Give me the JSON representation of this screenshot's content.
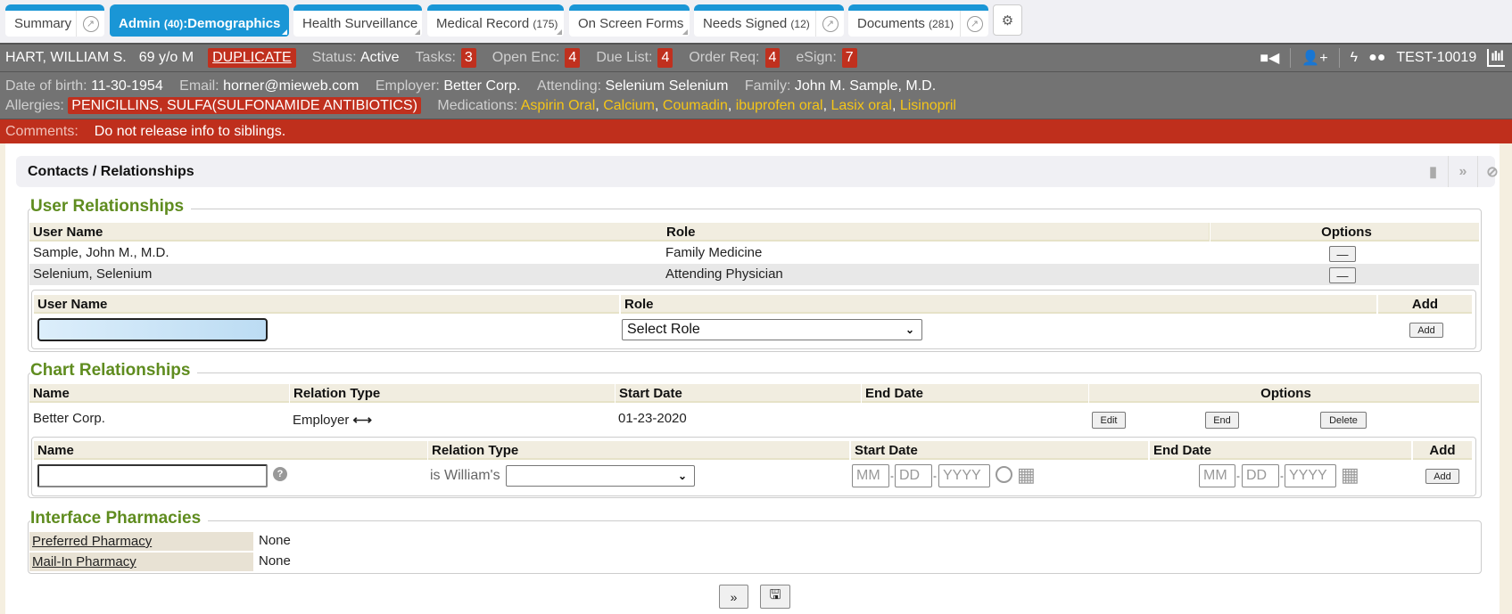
{
  "tabs": [
    {
      "label": "Summary",
      "popout": true,
      "active": false
    },
    {
      "label": "Admin",
      "count": "(40)",
      "suffix": ":Demographics",
      "active": true
    },
    {
      "label": "Health Surveillance",
      "active": false
    },
    {
      "label": "Medical Record",
      "count": "(175)",
      "active": false
    },
    {
      "label": "On Screen Forms",
      "active": false
    },
    {
      "label": "Needs Signed",
      "count": "(12)",
      "popout": true,
      "active": false
    },
    {
      "label": "Documents",
      "count": "(281)",
      "popout": true,
      "active": false
    }
  ],
  "settings_icon": "gears-icon",
  "patient": {
    "name": "HART, WILLIAM S.",
    "age_sex": "69 y/o M",
    "flag": "DUPLICATE",
    "status_label": "Status:",
    "status": "Active",
    "tasks_label": "Tasks:",
    "tasks": "3",
    "open_enc_label": "Open Enc:",
    "open_enc": "4",
    "due_list_label": "Due List:",
    "due_list": "4",
    "order_req_label": "Order Req:",
    "order_req": "4",
    "esign_label": "eSign:",
    "esign": "7",
    "chart_id": "TEST-10019"
  },
  "demographics": {
    "dob_label": "Date of birth:",
    "dob": "11-30-1954",
    "email_label": "Email:",
    "email": "horner@mieweb.com",
    "employer_label": "Employer:",
    "employer": "Better Corp.",
    "attending_label": "Attending:",
    "attending": "Selenium Selenium",
    "family_label": "Family:",
    "family": "John M. Sample, M.D.",
    "allergies_label": "Allergies:",
    "allergies": "PENICILLINS, SULFA(SULFONAMIDE ANTIBIOTICS)",
    "medications_label": "Medications:",
    "medications": [
      "Aspirin Oral",
      "Calcium",
      "Coumadin",
      "ibuprofen oral",
      "Lasix oral",
      "Lisinopril"
    ]
  },
  "comments": {
    "label": "Comments:",
    "text": "Do not release info to siblings."
  },
  "panel": {
    "title": "Contacts / Relationships"
  },
  "user_relationships": {
    "title": "User Relationships",
    "headers": [
      "User Name",
      "Role",
      "Options"
    ],
    "rows": [
      {
        "user": "Sample, John M., M.D.",
        "role": "Family Medicine"
      },
      {
        "user": "Selenium, Selenium",
        "role": "Attending Physician"
      }
    ],
    "remove_label": "—",
    "add_headers": [
      "User Name",
      "Role",
      "Add"
    ],
    "username_value": "",
    "role_select": "Select Role",
    "add_label": "Add"
  },
  "chart_relationships": {
    "title": "Chart Relationships",
    "headers": [
      "Name",
      "Relation Type",
      "Start Date",
      "End Date",
      "Options"
    ],
    "rows": [
      {
        "name": "Better Corp.",
        "relation": "Employer",
        "start": "01-23-2020",
        "end": ""
      }
    ],
    "edit_label": "Edit",
    "end_label": "End",
    "delete_label": "Delete",
    "add_headers": [
      "Name",
      "Relation Type",
      "Start Date",
      "End Date",
      "Add"
    ],
    "is_label": "is William's",
    "relation_select": "",
    "mm": "MM",
    "dd": "DD",
    "yyyy": "YYYY",
    "add_label": "Add"
  },
  "pharmacies": {
    "title": "Interface Pharmacies",
    "rows": [
      {
        "label": "Preferred Pharmacy",
        "value": "None"
      },
      {
        "label": "Mail-In Pharmacy",
        "value": "None"
      }
    ]
  },
  "colors": {
    "tab_blue": "#1a96d6",
    "patient_bar": "#737373",
    "alert_red": "#bf2f1c",
    "legend_green": "#5f8c1f",
    "medication_yellow": "#f5c518"
  }
}
